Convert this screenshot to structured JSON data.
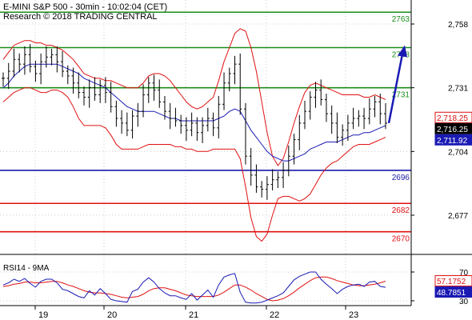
{
  "header": {
    "line1": "E-MINI S&P 500 - 30min - 10:02:04 (CET)",
    "line2": "Research © 2018 TRADING CENTRAL"
  },
  "colors": {
    "resistance": "#1a8c1a",
    "support_blue": "#1a1aa8",
    "support_red": "#e01010",
    "bollinger": "#e01010",
    "ma_blue": "#1a1ab4",
    "candles": "#000000",
    "price_tag": "#e01010",
    "arrow": "#1a1ab4",
    "rsi_line": "#1a1ab4",
    "rsi_ma": "#e01010",
    "grid": "#cccccc"
  },
  "chart_data": [
    {
      "type": "candlestick",
      "title": "E-MINI S&P 500 - 30min",
      "y_axis_ticks": [
        2758,
        2731,
        2704,
        2677
      ],
      "y_axis_tick_labels": [
        "2,758",
        "2,731",
        "2,704",
        "2,677"
      ],
      "ylim": [
        2662,
        2768
      ],
      "x_day_labels": [
        "19",
        "20",
        "21",
        "22",
        "23"
      ],
      "horizontal_levels": [
        {
          "label": "2763",
          "value": 2763,
          "color": "#1a8c1a"
        },
        {
          "label": "2748",
          "value": 2748,
          "color": "#1a8c1a"
        },
        {
          "label": "2731",
          "value": 2731,
          "color": "#1a8c1a"
        },
        {
          "label": "2696",
          "value": 2696,
          "color": "#1a1aa8"
        },
        {
          "label": "2682",
          "value": 2682,
          "color": "#e01010"
        },
        {
          "label": "2670",
          "value": 2670,
          "color": "#e01010"
        }
      ],
      "price_tags": [
        {
          "label": "2,718.25",
          "value": 2718.25,
          "style": "red"
        },
        {
          "label": "2,716.25",
          "value": 2716.25,
          "style": "black"
        },
        {
          "label": "2,711.92",
          "value": 2711.92,
          "style": "blue"
        }
      ],
      "close_series": [
        2735,
        2738,
        2743,
        2741,
        2745,
        2740,
        2737,
        2742,
        2744,
        2745,
        2742,
        2738,
        2736,
        2733,
        2729,
        2727,
        2731,
        2728,
        2732,
        2729,
        2723,
        2718,
        2716,
        2713,
        2719,
        2721,
        2728,
        2733,
        2730,
        2725,
        2721,
        2718,
        2717,
        2715,
        2713,
        2716,
        2712,
        2715,
        2718,
        2714,
        2724,
        2733,
        2737,
        2741,
        2722,
        2702,
        2694,
        2689,
        2688,
        2690,
        2692,
        2693,
        2696,
        2702,
        2709,
        2716,
        2721,
        2727,
        2730,
        2726,
        2720,
        2716,
        2710,
        2713,
        2716,
        2718,
        2719,
        2718,
        2722,
        2725,
        2720,
        2716
      ],
      "bollinger_upper": [
        2743,
        2746,
        2749,
        2750,
        2751,
        2751,
        2750,
        2750,
        2749,
        2749,
        2748,
        2747,
        2745,
        2743,
        2740,
        2737,
        2736,
        2735,
        2735,
        2734,
        2734,
        2733,
        2732,
        2731,
        2731,
        2731,
        2733,
        2736,
        2737,
        2737,
        2736,
        2734,
        2731,
        2728,
        2725,
        2723,
        2722,
        2723,
        2725,
        2727,
        2734,
        2742,
        2748,
        2754,
        2756,
        2755,
        2748,
        2738,
        2725,
        2712,
        2702,
        2698,
        2701,
        2708,
        2716,
        2723,
        2729,
        2732,
        2733,
        2732,
        2731,
        2730,
        2729,
        2728,
        2728,
        2728,
        2728,
        2727,
        2727,
        2728,
        2727,
        2726
      ],
      "bollinger_lower": [
        2725,
        2727,
        2729,
        2730,
        2731,
        2731,
        2730,
        2729,
        2729,
        2730,
        2730,
        2729,
        2727,
        2723,
        2718,
        2715,
        2715,
        2715,
        2715,
        2714,
        2711,
        2707,
        2705,
        2705,
        2705,
        2705,
        2706,
        2707,
        2707,
        2707,
        2707,
        2707,
        2706,
        2706,
        2705,
        2705,
        2704,
        2704,
        2704,
        2705,
        2705,
        2705,
        2705,
        2705,
        2701,
        2689,
        2676,
        2668,
        2666,
        2669,
        2677,
        2684,
        2685,
        2685,
        2684,
        2683,
        2684,
        2686,
        2690,
        2694,
        2697,
        2699,
        2700,
        2702,
        2704,
        2706,
        2707,
        2707,
        2707,
        2708,
        2709,
        2710
      ],
      "moving_average": [
        2731,
        2733,
        2736,
        2738,
        2740,
        2741,
        2741,
        2741,
        2741,
        2741,
        2741,
        2740,
        2739,
        2738,
        2737,
        2735,
        2734,
        2733,
        2732,
        2731,
        2729,
        2727,
        2725,
        2723,
        2722,
        2721,
        2721,
        2721,
        2721,
        2720,
        2719,
        2718,
        2718,
        2717,
        2717,
        2717,
        2717,
        2717,
        2717,
        2717,
        2718,
        2719,
        2721,
        2722,
        2721,
        2717,
        2713,
        2710,
        2707,
        2704,
        2702,
        2701,
        2700,
        2700,
        2701,
        2702,
        2703,
        2705,
        2706,
        2707,
        2708,
        2708,
        2708,
        2709,
        2710,
        2711,
        2711,
        2712,
        2712,
        2713,
        2714,
        2715
      ],
      "projection_arrow": {
        "from": 2716,
        "to": 2748
      }
    },
    {
      "type": "line",
      "title": "RSI14 - 9MA",
      "y_axis_ticks": [
        70,
        30
      ],
      "y_axis_tick_labels": [
        "70",
        "30"
      ],
      "ylim": [
        20,
        80
      ],
      "value_tags": [
        {
          "label": "57.1752",
          "value": 57.1752,
          "style": "red"
        },
        {
          "label": "48.7851",
          "value": 48.7851,
          "style": "blue"
        }
      ],
      "series": [
        {
          "values": [
            52,
            55,
            60,
            57,
            61,
            54,
            49,
            57,
            60,
            60,
            55,
            46,
            44,
            40,
            36,
            34,
            44,
            38,
            47,
            40,
            32,
            30,
            29,
            28,
            43,
            46,
            56,
            62,
            56,
            47,
            41,
            37,
            37,
            34,
            32,
            40,
            31,
            38,
            45,
            35,
            52,
            63,
            66,
            68,
            42,
            28,
            27,
            27,
            28,
            31,
            34,
            37,
            41,
            50,
            59,
            64,
            67,
            70,
            70,
            60,
            53,
            47,
            40,
            46,
            50,
            52,
            53,
            50,
            56,
            57,
            50,
            48.7851
          ]
        },
        {
          "values": [
            50,
            51,
            53,
            54,
            56,
            56,
            55,
            55,
            56,
            57,
            57,
            55,
            52,
            50,
            47,
            44,
            42,
            41,
            41,
            40,
            39,
            37,
            35,
            34,
            35,
            36,
            39,
            44,
            47,
            48,
            48,
            46,
            44,
            41,
            38,
            37,
            36,
            36,
            36,
            36,
            38,
            42,
            47,
            52,
            52,
            49,
            45,
            40,
            36,
            32,
            30,
            31,
            33,
            37,
            42,
            48,
            53,
            58,
            62,
            63,
            63,
            61,
            58,
            56,
            54,
            52,
            51,
            51,
            52,
            53,
            55,
            57.1752
          ]
        }
      ]
    }
  ]
}
